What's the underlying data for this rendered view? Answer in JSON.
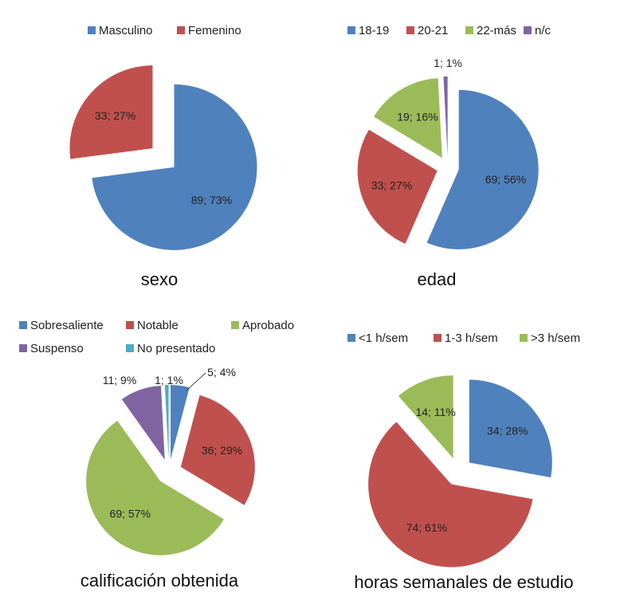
{
  "chart_data": [
    {
      "type": "pie",
      "title": "sexo",
      "categories": [
        "Masculino",
        "Femenino"
      ],
      "values": [
        89,
        33
      ],
      "percents": [
        73,
        27
      ],
      "colors": [
        "#4F81BD",
        "#C0504D"
      ],
      "legend": "top",
      "exploded": true
    },
    {
      "type": "pie",
      "title": "edad",
      "categories": [
        "18-19",
        "20-21",
        "22-más",
        "n/c"
      ],
      "values": [
        69,
        33,
        19,
        1
      ],
      "percents": [
        56,
        27,
        16,
        1
      ],
      "colors": [
        "#4F81BD",
        "#C0504D",
        "#9BBB59",
        "#8064A2"
      ],
      "legend": "top",
      "exploded": true
    },
    {
      "type": "pie",
      "title": "calificación obtenida",
      "categories": [
        "Sobresaliente",
        "Notable",
        "Aprobado",
        "Suspenso",
        "No presentado"
      ],
      "values": [
        5,
        36,
        69,
        11,
        1
      ],
      "percents": [
        4,
        29,
        57,
        9,
        1
      ],
      "colors": [
        "#4F81BD",
        "#C0504D",
        "#9BBB59",
        "#8064A2",
        "#4BACC6"
      ],
      "legend": "top",
      "exploded": true
    },
    {
      "type": "pie",
      "title": "horas semanales de estudio",
      "categories": [
        "<1 h/sem",
        "1-3 h/sem",
        ">3 h/sem"
      ],
      "values": [
        34,
        74,
        14
      ],
      "percents": [
        28,
        61,
        11
      ],
      "colors": [
        "#4F81BD",
        "#C0504D",
        "#9BBB59"
      ],
      "legend": "top",
      "exploded": true
    }
  ]
}
